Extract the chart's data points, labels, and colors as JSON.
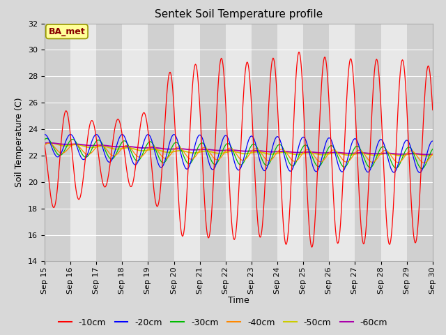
{
  "title": "Sentek Soil Temperature profile",
  "xlabel": "Time",
  "ylabel": "Soil Temperature (C)",
  "ylim": [
    14,
    32
  ],
  "yticks": [
    14,
    16,
    18,
    20,
    22,
    24,
    26,
    28,
    30,
    32
  ],
  "x_tick_labels": [
    "Sep 15",
    "Sep 16",
    "Sep 17",
    "Sep 18",
    "Sep 19",
    "Sep 20",
    "Sep 21",
    "Sep 22",
    "Sep 23",
    "Sep 24",
    "Sep 25",
    "Sep 26",
    "Sep 27",
    "Sep 28",
    "Sep 29",
    "Sep 30"
  ],
  "series_colors": {
    "-10cm": "#ff0000",
    "-20cm": "#0000ff",
    "-30cm": "#00bb00",
    "-40cm": "#ff8800",
    "-50cm": "#cccc00",
    "-60cm": "#aa00aa"
  },
  "legend_label": "BA_met",
  "legend_box_facecolor": "#ffff99",
  "legend_box_edgecolor": "#999900",
  "legend_text_color": "#880000",
  "fig_facecolor": "#d8d8d8",
  "plot_facecolor": "#e8e8e8",
  "stripe_dark": "#d0d0d0",
  "stripe_light": "#e8e8e8",
  "title_fontsize": 11,
  "axis_label_fontsize": 9,
  "tick_fontsize": 8,
  "legend_fontsize": 9
}
